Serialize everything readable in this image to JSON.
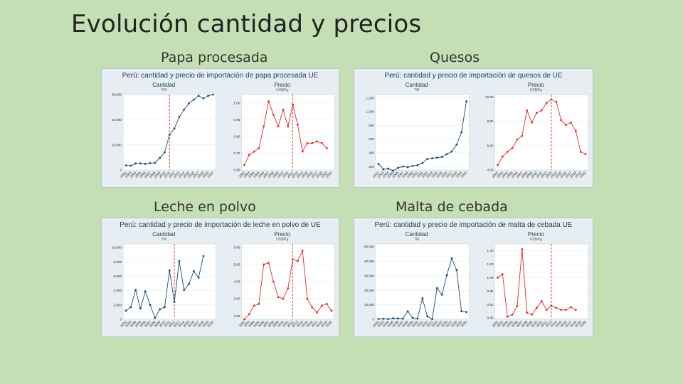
{
  "slide": {
    "title": "Evolución cantidad y precios"
  },
  "panels": [
    {
      "caption": "Papa procesada",
      "title": "Perú: cantidad y precio de importación de papa procesada UE",
      "x": 142,
      "y": 96,
      "w": 335,
      "h": 168,
      "chart_data": [
        {
          "type": "line",
          "title": "Cantidad",
          "unit": "TM",
          "x": [
            "2002",
            "2003",
            "2004",
            "2005",
            "2006",
            "2007",
            "2008",
            "2009",
            "2010",
            "2011",
            "2012",
            "2013",
            "2014",
            "2015",
            "2016",
            "2017",
            "2018",
            "2019",
            "2020"
          ],
          "values": [
            1800,
            1700,
            2600,
            2600,
            2400,
            2700,
            2800,
            4800,
            7000,
            14000,
            16500,
            21000,
            24000,
            26500,
            28000,
            29500,
            28500,
            29500,
            30000
          ],
          "ylim": [
            0,
            30000
          ],
          "yticks": [
            0,
            10000,
            20000,
            30000
          ],
          "ytick_labels": [
            "0",
            "10,000",
            "20,000",
            "30,000"
          ],
          "marker_index": 9,
          "color": "#1e4a6e"
        },
        {
          "type": "line",
          "title": "Precio",
          "unit": "US$/Kg",
          "x": [
            "2002",
            "2003",
            "2004",
            "2005",
            "2006",
            "2007",
            "2008",
            "2009",
            "2010",
            "2011",
            "2012",
            "2013",
            "2014",
            "2015",
            "2016",
            "2017",
            "2018",
            "2019",
            "2020"
          ],
          "values": [
            0.63,
            0.69,
            0.71,
            0.73,
            0.86,
            1.01,
            0.93,
            0.86,
            0.96,
            0.86,
            0.99,
            0.87,
            0.71,
            0.76,
            0.76,
            0.77,
            0.76,
            0.73,
            null
          ],
          "ylim": [
            0.6,
            1.05
          ],
          "yticks": [
            0.6,
            0.7,
            0.8,
            0.9,
            1.0
          ],
          "ytick_labels": [
            "0.60",
            "0.70",
            "0.80",
            "0.90",
            "1.00"
          ],
          "marker_index": 10,
          "color": "#e02b2b"
        }
      ]
    },
    {
      "caption": "Quesos",
      "title": "Perú: cantidad y precio de importación de quesos de UE",
      "x": 497,
      "y": 96,
      "w": 337,
      "h": 168,
      "chart_data": [
        {
          "type": "line",
          "title": "Cantidad",
          "unit": "TM",
          "x": [
            "2002",
            "2003",
            "2004",
            "2005",
            "2006",
            "2007",
            "2008",
            "2009",
            "2010",
            "2011",
            "2012",
            "2013",
            "2014",
            "2015",
            "2016",
            "2017",
            "2018",
            "2019",
            "2020"
          ],
          "values": [
            240,
            160,
            170,
            140,
            180,
            200,
            190,
            210,
            220,
            250,
            310,
            320,
            330,
            340,
            380,
            420,
            520,
            700,
            1150
          ],
          "ylim": [
            150,
            1250
          ],
          "yticks": [
            200,
            400,
            600,
            800,
            1000,
            1200
          ],
          "ytick_labels": [
            "200",
            "400",
            "600",
            "800",
            "1,000",
            "1,200"
          ],
          "marker_index": null,
          "color": "#1e4a6e"
        },
        {
          "type": "line",
          "title": "Precio",
          "unit": "US$/Kg",
          "x": [
            "2002",
            "2003",
            "2004",
            "2005",
            "2006",
            "2007",
            "2008",
            "2009",
            "2010",
            "2011",
            "2012",
            "2013",
            "2014",
            "2015",
            "2016",
            "2017",
            "2018",
            "2019",
            "2020"
          ],
          "values": [
            4.4,
            5.1,
            5.5,
            5.8,
            6.5,
            6.8,
            8.9,
            7.9,
            8.7,
            8.9,
            9.5,
            9.8,
            9.6,
            8.1,
            7.7,
            7.9,
            7.2,
            5.5,
            5.3
          ],
          "ylim": [
            4.0,
            10.2
          ],
          "yticks": [
            4.0,
            6.0,
            8.0,
            10.0
          ],
          "ytick_labels": [
            "4.00",
            "6.00",
            "8.00",
            "10.00"
          ],
          "marker_index": 11,
          "color": "#e02b2b"
        }
      ]
    },
    {
      "caption": "Leche en polvo",
      "title": "Perú: cantidad y precio de importación de leche en polvo de UE",
      "x": 142,
      "y": 306,
      "w": 335,
      "h": 168,
      "chart_data": [
        {
          "type": "line",
          "title": "Cantidad",
          "unit": "TM",
          "x": [
            "2002",
            "2003",
            "2004",
            "2005",
            "2006",
            "2007",
            "2008",
            "2009",
            "2010",
            "2011",
            "2012",
            "2013",
            "2014",
            "2015",
            "2016",
            "2017",
            "2018",
            "2019",
            "2020"
          ],
          "values": [
            1200,
            1700,
            4100,
            1500,
            3900,
            2000,
            200,
            1400,
            1700,
            6800,
            2400,
            8100,
            4100,
            4900,
            6700,
            5800,
            8800,
            null,
            null
          ],
          "ylim": [
            0,
            10500
          ],
          "yticks": [
            0,
            2000,
            4000,
            6000,
            8000,
            10000
          ],
          "ytick_labels": [
            "0",
            "2,000",
            "4,000",
            "6,000",
            "8,000",
            "10,000"
          ],
          "marker_index": 10,
          "color": "#1e4a6e"
        },
        {
          "type": "line",
          "title": "Precio",
          "unit": "US$/Kg",
          "x": [
            "2002",
            "2003",
            "2004",
            "2005",
            "2006",
            "2007",
            "2008",
            "2009",
            "2010",
            "2011",
            "2012",
            "2013",
            "2014",
            "2015",
            "2016",
            "2017",
            "2018",
            "2019",
            "2020"
          ],
          "values": [
            1.8,
            2.1,
            2.6,
            2.7,
            5.0,
            5.1,
            4.0,
            3.1,
            3.0,
            3.6,
            5.3,
            5.2,
            5.8,
            3.0,
            2.5,
            2.2,
            2.6,
            2.7,
            2.3
          ],
          "ylim": [
            1.8,
            6.2
          ],
          "yticks": [
            2.0,
            3.0,
            4.0,
            5.0,
            6.0
          ],
          "ytick_labels": [
            "2.00",
            "3.00",
            "4.00",
            "5.00",
            "6.00"
          ],
          "marker_index": 10,
          "color": "#e02b2b"
        }
      ]
    },
    {
      "caption": "Malta de cebada",
      "title": "Perú: cantidad y precio de importación de malta de cebada UE",
      "x": 497,
      "y": 306,
      "w": 337,
      "h": 168,
      "chart_data": [
        {
          "type": "line",
          "title": "Cantidad",
          "unit": "TM",
          "x": [
            "2002",
            "2003",
            "2004",
            "2005",
            "2006",
            "2007",
            "2008",
            "2009",
            "2010",
            "2011",
            "2012",
            "2013",
            "2014",
            "2015",
            "2016",
            "2017",
            "2018",
            "2019",
            "2020"
          ],
          "values": [
            300,
            400,
            200,
            700,
            600,
            500,
            5500,
            1000,
            500,
            14500,
            2000,
            200,
            21500,
            17000,
            30500,
            42000,
            34000,
            5500,
            5000
          ],
          "ylim": [
            0,
            52000
          ],
          "yticks": [
            0,
            10000,
            20000,
            30000,
            40000,
            50000
          ],
          "ytick_labels": [
            "0",
            "10,000",
            "20,000",
            "30,000",
            "40,000",
            "50,000"
          ],
          "marker_index": null,
          "color": "#1e4a6e"
        },
        {
          "type": "line",
          "title": "Precio",
          "unit": "US$/Kg",
          "x": [
            "2002",
            "2003",
            "2004",
            "2005",
            "2006",
            "2007",
            "2008",
            "2009",
            "2010",
            "2011",
            "2012",
            "2013",
            "2014",
            "2015",
            "2016",
            "2017",
            "2018",
            "2019",
            "2020"
          ],
          "values": [
            1.0,
            1.05,
            0.42,
            0.45,
            0.58,
            1.42,
            0.48,
            0.45,
            0.55,
            0.65,
            0.52,
            0.58,
            0.55,
            0.52,
            0.52,
            0.56,
            0.52,
            null,
            null
          ],
          "ylim": [
            0.38,
            1.5
          ],
          "yticks": [
            0.4,
            0.6,
            0.8,
            1.0,
            1.2,
            1.4
          ],
          "ytick_labels": [
            "0.40",
            "0.60",
            "0.80",
            "1.00",
            "1.20",
            "1.40"
          ],
          "marker_index": 11,
          "color": "#e02b2b"
        }
      ]
    }
  ],
  "caption_positions": [
    {
      "left": 226,
      "top": 70
    },
    {
      "left": 604,
      "top": 70
    },
    {
      "left": 216,
      "top": 280
    },
    {
      "left": 556,
      "top": 280
    }
  ]
}
